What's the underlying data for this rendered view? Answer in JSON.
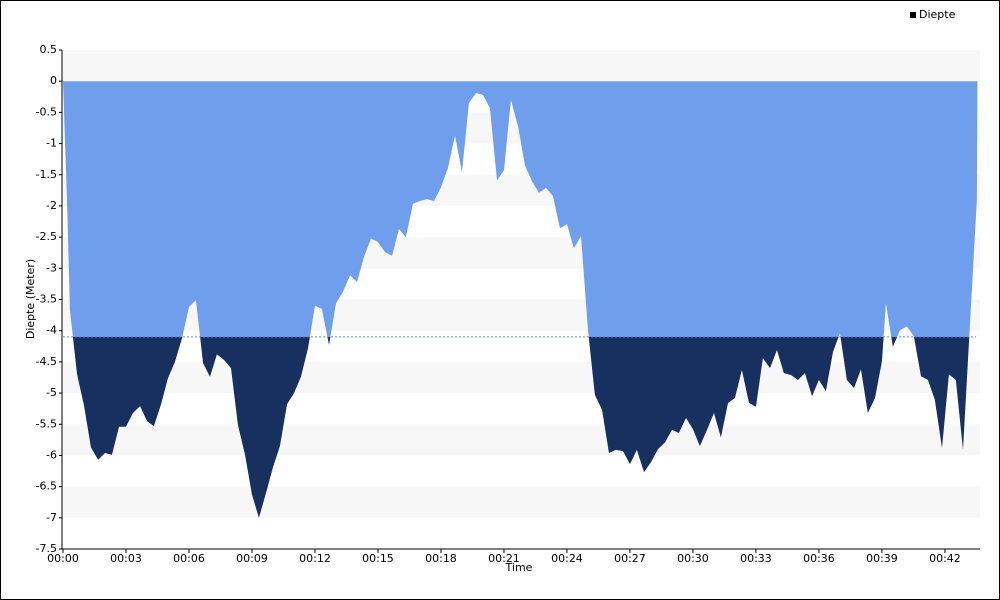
{
  "chart_data": {
    "type": "area",
    "x_label": "Time",
    "y_label": "Diepte (Meter)",
    "x": [
      0,
      0.19,
      0.33,
      0.67,
      1,
      1.33,
      1.67,
      2,
      2.33,
      2.67,
      3,
      3.33,
      3.67,
      4,
      4.33,
      4.67,
      5,
      5.33,
      5.67,
      6,
      6.33,
      6.67,
      7,
      7.33,
      7.67,
      8,
      8.33,
      8.67,
      9,
      9.33,
      9.67,
      10,
      10.33,
      10.67,
      11,
      11.33,
      11.67,
      12,
      12.33,
      12.67,
      13,
      13.33,
      13.67,
      14,
      14.33,
      14.67,
      15,
      15.33,
      15.67,
      16,
      16.33,
      16.67,
      17,
      17.33,
      17.67,
      18,
      18.33,
      18.67,
      19,
      19.33,
      19.67,
      20,
      20.33,
      20.67,
      21,
      21.33,
      21.67,
      22,
      22.33,
      22.67,
      23,
      23.33,
      23.67,
      24,
      24.33,
      24.67,
      25,
      25.33,
      25.67,
      26,
      26.33,
      26.67,
      27,
      27.33,
      27.67,
      28,
      28.33,
      28.67,
      29,
      29.33,
      29.67,
      30,
      30.33,
      30.67,
      31,
      31.33,
      31.67,
      32,
      32.33,
      32.67,
      33,
      33.33,
      33.67,
      34,
      34.33,
      34.67,
      35,
      35.33,
      35.67,
      36,
      36.33,
      36.67,
      37,
      37.33,
      37.67,
      38,
      38.33,
      38.67,
      39,
      39.19,
      39.52,
      39.86,
      40.19,
      40.52,
      40.86,
      41.19,
      41.52,
      41.86,
      42.19,
      42.52,
      42.86,
      43.52,
      43.55
    ],
    "series": [
      {
        "name": "Diepte",
        "color": "#6f9fec",
        "deep_color": "#17305f",
        "values": [
          0,
          -1.9,
          -3.67,
          -4.7,
          -5.2,
          -5.87,
          -6.07,
          -5.96,
          -5.99,
          -5.54,
          -5.54,
          -5.32,
          -5.21,
          -5.45,
          -5.53,
          -5.18,
          -4.76,
          -4.5,
          -4.12,
          -3.62,
          -3.51,
          -4.52,
          -4.74,
          -4.38,
          -4.47,
          -4.6,
          -5.51,
          -5.99,
          -6.63,
          -7.0,
          -6.6,
          -6.19,
          -5.85,
          -5.18,
          -5.0,
          -4.74,
          -4.28,
          -3.6,
          -3.65,
          -4.23,
          -3.56,
          -3.38,
          -3.11,
          -3.22,
          -2.82,
          -2.52,
          -2.58,
          -2.74,
          -2.8,
          -2.37,
          -2.5,
          -1.96,
          -1.92,
          -1.89,
          -1.92,
          -1.7,
          -1.39,
          -0.87,
          -1.46,
          -0.35,
          -0.19,
          -0.22,
          -0.43,
          -1.59,
          -1.43,
          -0.3,
          -0.72,
          -1.35,
          -1.6,
          -1.79,
          -1.71,
          -1.84,
          -2.36,
          -2.29,
          -2.68,
          -2.48,
          -3.99,
          -5.03,
          -5.27,
          -5.96,
          -5.91,
          -5.93,
          -6.14,
          -5.91,
          -6.27,
          -6.11,
          -5.9,
          -5.79,
          -5.59,
          -5.64,
          -5.4,
          -5.58,
          -5.85,
          -5.59,
          -5.32,
          -5.71,
          -5.16,
          -5.08,
          -4.63,
          -5.16,
          -5.22,
          -4.44,
          -4.6,
          -4.31,
          -4.68,
          -4.71,
          -4.79,
          -4.68,
          -5.05,
          -4.79,
          -4.97,
          -4.34,
          -4.04,
          -4.79,
          -4.92,
          -4.62,
          -5.32,
          -5.08,
          -4.49,
          -3.56,
          -4.26,
          -3.99,
          -3.93,
          -4.09,
          -4.73,
          -4.79,
          -5.11,
          -5.88,
          -4.7,
          -4.79,
          -5.91,
          -1.91,
          0
        ]
      }
    ],
    "threshold": -4.1,
    "xlim": [
      0,
      43.67
    ],
    "xticks": [
      {
        "value": 0,
        "label": "00:00"
      },
      {
        "value": 3,
        "label": "00:03"
      },
      {
        "value": 6,
        "label": "00:06"
      },
      {
        "value": 9,
        "label": "00:09"
      },
      {
        "value": 12,
        "label": "00:12"
      },
      {
        "value": 15,
        "label": "00:15"
      },
      {
        "value": 18,
        "label": "00:18"
      },
      {
        "value": 21,
        "label": "00:21"
      },
      {
        "value": 24,
        "label": "00:24"
      },
      {
        "value": 27,
        "label": "00:27"
      },
      {
        "value": 30,
        "label": "00:30"
      },
      {
        "value": 33,
        "label": "00:33"
      },
      {
        "value": 36,
        "label": "00:36"
      },
      {
        "value": 39,
        "label": "00:39"
      },
      {
        "value": 42,
        "label": "00:42"
      }
    ],
    "ylim": [
      -7.5,
      0.5
    ],
    "yticks": [
      0.5,
      0,
      -0.5,
      -1,
      -1.5,
      -2,
      -2.5,
      -3,
      -3.5,
      -4,
      -4.5,
      -5,
      -5.5,
      -6,
      -6.5,
      -7,
      -7.5
    ],
    "legend": "top-right"
  }
}
